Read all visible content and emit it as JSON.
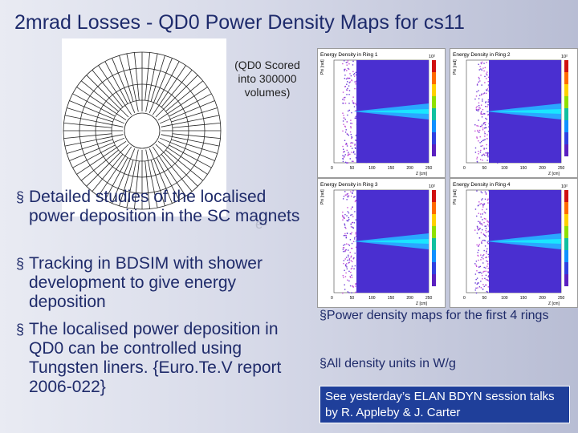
{
  "slide": {
    "title": "2mrad Losses - QD0 Power Density Maps for cs11",
    "diagram_caption": [
      "(QD0 Scored",
      "into 300000",
      "volumes)"
    ],
    "bullets": [
      "Detailed studies of the localised power deposition in the SC magnets",
      "Tracking in BDSIM with shower development to give energy deposition",
      "The localised power deposition in QD0 can be controlled using Tungsten liners. {Euro.Te.V report 2006-022}"
    ],
    "bullet_marker": "§",
    "notes": [
      "§Power density maps for the first 4 rings",
      "§All density units in W/g"
    ],
    "highlight_box": "See yesterday’s ELAN BDYN session talks by R. Appleby & J. Carter",
    "background_label": "e-"
  },
  "maps": [
    {
      "title": "Energy Density in Ring 1",
      "xlabel": "Z [cm]",
      "ylabel": "Phi [rad]",
      "scale_top": "10²",
      "x_ticks": [
        "0",
        "50",
        "100",
        "150",
        "200",
        "250"
      ]
    },
    {
      "title": "Energy Density in Ring 2",
      "xlabel": "Z [cm]",
      "ylabel": "Phi [rad]",
      "scale_top": "10²",
      "x_ticks": [
        "0",
        "50",
        "100",
        "150",
        "200",
        "250"
      ]
    },
    {
      "title": "Energy Density in Ring 3",
      "xlabel": "Z [cm]",
      "ylabel": "Phi [rad]",
      "scale_top": "10²",
      "x_ticks": [
        "0",
        "50",
        "100",
        "150",
        "200",
        "250"
      ]
    },
    {
      "title": "Energy Density in Ring 4",
      "xlabel": "Z [cm]",
      "ylabel": "Phi [rad]",
      "scale_top": "10²",
      "x_ticks": [
        "0",
        "50",
        "100",
        "150",
        "200",
        "250"
      ]
    }
  ],
  "colors": {
    "title": "#1d2a6b",
    "text": "#1f2b6a",
    "box_bg": "#1f3f9a",
    "map_fill": "#4a2fd0"
  }
}
